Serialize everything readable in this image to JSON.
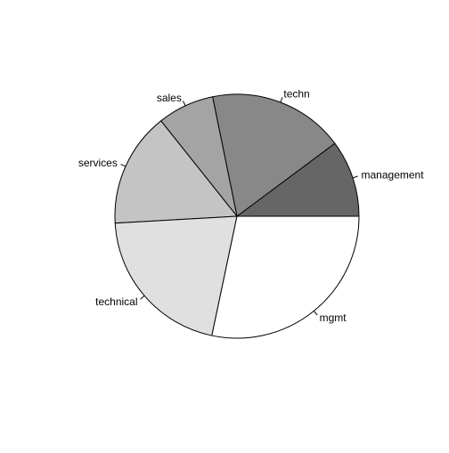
{
  "chart_data": {
    "type": "pie",
    "title": "",
    "categories": [
      "management",
      "techn",
      "sales",
      "services",
      "technical",
      "mgmt"
    ],
    "values": [
      10.2,
      18.0,
      7.5,
      15.2,
      20.8,
      28.3
    ],
    "colors": [
      "#666666",
      "#888888",
      "#a4a4a4",
      "#c4c4c4",
      "#e0e0e0",
      "#ffffff"
    ],
    "start_angle_deg": 0,
    "direction": "counterclockwise",
    "outline_color": "#000000",
    "label_color": "#000000"
  }
}
